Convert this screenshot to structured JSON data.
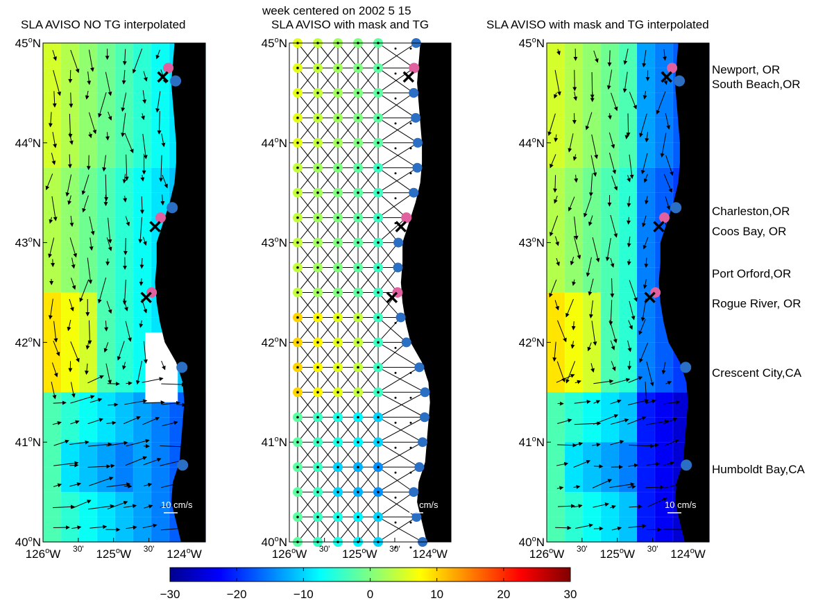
{
  "figure": {
    "supertitle": "week centered on 2002     5     15",
    "panels": [
      {
        "id": "left",
        "title": "SLA AVISO NO TG interpolated",
        "scale_label": "10 cm/s"
      },
      {
        "id": "middle",
        "title": "SLA AVISO with mask and TG",
        "scale_label": "10 cm/s"
      },
      {
        "id": "right",
        "title": "SLA AVISO with mask and TG interpolated",
        "scale_label": "10 cm/s"
      }
    ],
    "lat_labels": [
      {
        "deg": "45",
        "unit": "o",
        "hemi": "N",
        "lat": 45
      },
      {
        "deg": "44",
        "unit": "o",
        "hemi": "N",
        "lat": 44
      },
      {
        "deg": "43",
        "unit": "o",
        "hemi": "N",
        "lat": 43
      },
      {
        "deg": "42",
        "unit": "o",
        "hemi": "N",
        "lat": 42
      },
      {
        "deg": "41",
        "unit": "o",
        "hemi": "N",
        "lat": 41
      },
      {
        "deg": "40",
        "unit": "o",
        "hemi": "N",
        "lat": 40
      }
    ],
    "lon_labels": [
      {
        "text": "126",
        "sup": "o",
        "hemi": "W",
        "lon": -126
      },
      {
        "text": "30'",
        "sup": "",
        "hemi": "",
        "lon": -125.5,
        "small": true
      },
      {
        "text": "125",
        "sup": "o",
        "hemi": "W",
        "lon": -125
      },
      {
        "text": "30'",
        "sup": "",
        "hemi": "",
        "lon": -124.5,
        "small": true
      },
      {
        "text": "124",
        "sup": "o",
        "hemi": "W",
        "lon": -124
      }
    ],
    "stations": [
      {
        "name": "Newport, OR",
        "lat": 44.65
      },
      {
        "name": "South Beach,OR",
        "lat": 44.57
      },
      {
        "name": "Charleston,OR",
        "lat": 43.37
      },
      {
        "name": "Coos Bay, OR",
        "lat": 43.18
      },
      {
        "name": "Port Orford,OR",
        "lat": 42.74
      },
      {
        "name": "Rogue River, OR",
        "lat": 42.42
      },
      {
        "name": "Crescent City,CA",
        "lat": 41.75
      },
      {
        "name": "Humboldt Bay,CA",
        "lat": 40.77
      }
    ],
    "colorbar": {
      "ticks": [
        "−30",
        "−20",
        "−10",
        "0",
        "10",
        "20",
        "30"
      ],
      "min": -30,
      "max": 30,
      "colormap": "jet"
    },
    "colors": {
      "land": "#000000",
      "tide_gauge_marker": "#e060a0",
      "coast_marker": "#2a6fc4",
      "cross": "#000000"
    }
  },
  "chart_data": {
    "type": "heatmap",
    "title": "week centered on 2002 5 15",
    "xlabel": "",
    "ylabel": "",
    "xlim": [
      -126,
      -123.7
    ],
    "ylim": [
      40,
      45
    ],
    "units": "SLA (colorbar −30 to 30)",
    "colorbar_range": [
      -30,
      30
    ]
  }
}
